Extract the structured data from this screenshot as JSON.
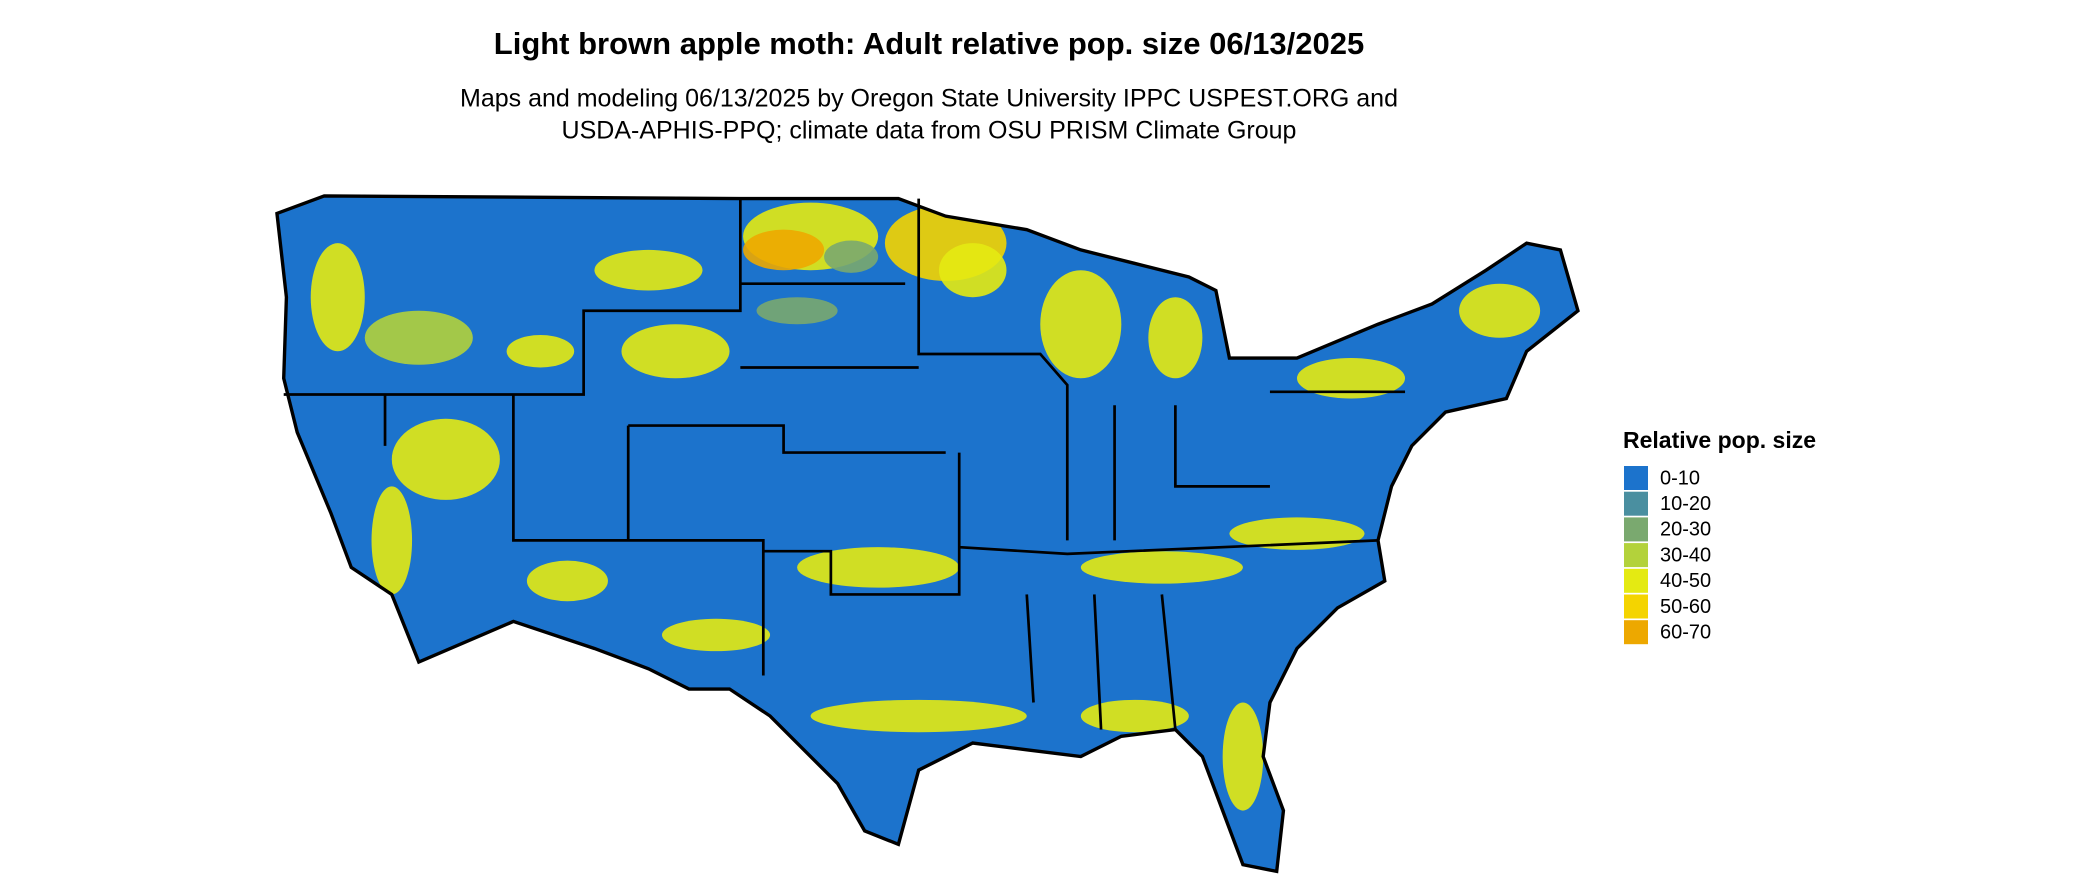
{
  "map": {
    "title": "Light brown apple moth: Adult relative pop. size 06/13/2025",
    "subtitle_lines": [
      "Maps and modeling 06/13/2025 by Oregon State University IPPC USPEST.ORG and",
      "USDA-APHIS-PPQ; climate data from OSU PRISM Climate Group"
    ],
    "legend": {
      "title": "Relative pop. size",
      "items": [
        {
          "label": "0-10",
          "color": "#1c73cc"
        },
        {
          "label": "10-20",
          "color": "#4a8fa0"
        },
        {
          "label": "20-30",
          "color": "#7aa96f"
        },
        {
          "label": "30-40",
          "color": "#b3d23b"
        },
        {
          "label": "40-50",
          "color": "#e4ea12"
        },
        {
          "label": "50-60",
          "color": "#f4d400"
        },
        {
          "label": "60-70",
          "color": "#eda800"
        }
      ]
    }
  }
}
